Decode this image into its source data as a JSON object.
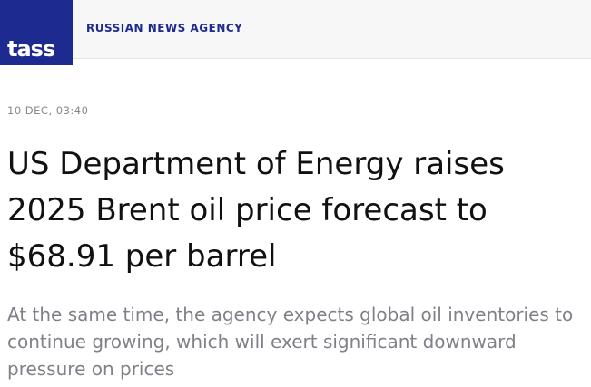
{
  "header": {
    "logo": "TASS",
    "agency": "RUSSIAN NEWS AGENCY"
  },
  "article": {
    "date": "10 DEC, 03:40",
    "title": "US Department of Energy raises 2025 Brent oil price forecast to $68.91 per barrel",
    "lead": "At the same time, the agency expects global oil inventories to continue growing, which will exert significant downward pressure on prices"
  }
}
